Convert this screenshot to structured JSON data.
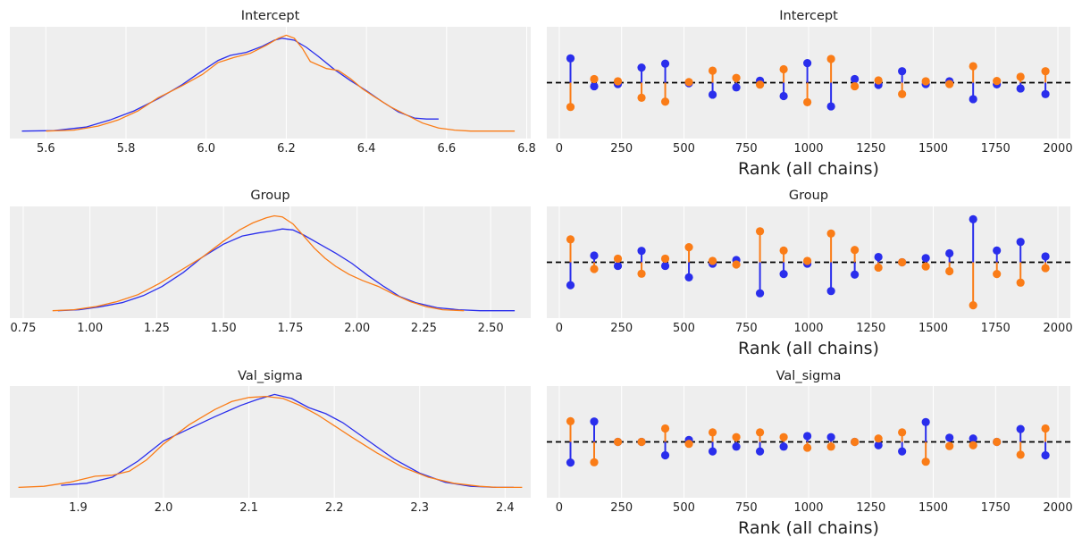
{
  "colors": {
    "chain_1": "#2a2eec",
    "chain_2": "#fa7c17",
    "panel_bg": "#eeeeee",
    "grid": "#ffffff",
    "ref_line": "#000000"
  },
  "chart_data": [
    {
      "type": "line",
      "kind": "density",
      "title": "Intercept",
      "xlim": [
        5.51,
        6.81
      ],
      "xticks": [
        "5.6",
        "5.8",
        "6.0",
        "6.2",
        "6.4",
        "6.6",
        "6.8"
      ],
      "series": [
        {
          "x": [
            5.54,
            5.62,
            5.7,
            5.76,
            5.82,
            5.88,
            5.94,
            5.98,
            6.03,
            6.06,
            6.1,
            6.14,
            6.17,
            6.19,
            6.22,
            6.25,
            6.28,
            6.32,
            6.36,
            6.4,
            6.44,
            6.48,
            6.52,
            6.55,
            6.58
          ],
          "y": [
            0.02,
            0.025,
            0.06,
            0.13,
            0.22,
            0.34,
            0.48,
            0.59,
            0.72,
            0.77,
            0.8,
            0.86,
            0.92,
            0.94,
            0.92,
            0.85,
            0.76,
            0.63,
            0.52,
            0.42,
            0.31,
            0.21,
            0.15,
            0.14,
            0.14
          ]
        },
        {
          "x": [
            5.6,
            5.67,
            5.73,
            5.78,
            5.83,
            5.88,
            5.94,
            5.99,
            6.03,
            6.07,
            6.11,
            6.15,
            6.18,
            6.2,
            6.22,
            6.24,
            6.26,
            6.3,
            6.33,
            6.36,
            6.39,
            6.42,
            6.46,
            6.5,
            6.54,
            6.58,
            6.62,
            6.66,
            6.72,
            6.77
          ],
          "y": [
            0.02,
            0.03,
            0.07,
            0.13,
            0.22,
            0.35,
            0.47,
            0.58,
            0.7,
            0.75,
            0.79,
            0.87,
            0.94,
            0.97,
            0.94,
            0.84,
            0.71,
            0.64,
            0.62,
            0.54,
            0.44,
            0.36,
            0.26,
            0.18,
            0.1,
            0.05,
            0.03,
            0.02,
            0.02,
            0.02
          ]
        }
      ]
    },
    {
      "type": "scatter",
      "kind": "rank",
      "title": "Intercept",
      "xlabel": "Rank (all chains)",
      "xlim": [
        -50,
        2050
      ],
      "xticks": [
        "0",
        "250",
        "500",
        "750",
        "1000",
        "1250",
        "1500",
        "1750",
        "2000"
      ],
      "bins": [
        45,
        140,
        235,
        330,
        425,
        520,
        615,
        710,
        805,
        900,
        995,
        1090,
        1185,
        1280,
        1375,
        1470,
        1565,
        1660,
        1755,
        1850,
        1950
      ],
      "series": [
        {
          "values": [
            0.87,
            -0.13,
            -0.05,
            0.54,
            0.68,
            -0.02,
            -0.43,
            -0.17,
            0.07,
            -0.48,
            0.7,
            -0.85,
            0.13,
            -0.08,
            0.41,
            -0.05,
            0.05,
            -0.59,
            -0.06,
            -0.21,
            -0.41
          ]
        },
        {
          "values": [
            -0.87,
            0.13,
            0.05,
            -0.54,
            -0.68,
            0.02,
            0.43,
            0.17,
            -0.07,
            0.48,
            -0.7,
            0.85,
            -0.13,
            0.08,
            -0.41,
            0.05,
            -0.05,
            0.59,
            0.06,
            0.21,
            0.41
          ]
        }
      ]
    },
    {
      "type": "line",
      "kind": "density",
      "title": "Group",
      "xlim": [
        0.7,
        2.65
      ],
      "xticks": [
        "0.75",
        "1.00",
        "1.25",
        "1.50",
        "1.75",
        "2.00",
        "2.25",
        "2.50"
      ],
      "series": [
        {
          "x": [
            0.88,
            0.96,
            1.04,
            1.12,
            1.2,
            1.27,
            1.35,
            1.42,
            1.5,
            1.57,
            1.63,
            1.68,
            1.72,
            1.76,
            1.8,
            1.86,
            1.92,
            1.98,
            2.04,
            2.1,
            2.16,
            2.22,
            2.3,
            2.38,
            2.46,
            2.59
          ],
          "y": [
            0.02,
            0.03,
            0.06,
            0.1,
            0.17,
            0.26,
            0.4,
            0.55,
            0.68,
            0.76,
            0.79,
            0.81,
            0.83,
            0.82,
            0.77,
            0.68,
            0.59,
            0.49,
            0.37,
            0.26,
            0.16,
            0.1,
            0.05,
            0.03,
            0.02,
            0.02
          ]
        },
        {
          "x": [
            0.86,
            0.94,
            1.02,
            1.1,
            1.18,
            1.26,
            1.34,
            1.42,
            1.5,
            1.56,
            1.61,
            1.66,
            1.69,
            1.72,
            1.76,
            1.8,
            1.84,
            1.88,
            1.92,
            1.97,
            2.02,
            2.08,
            2.14,
            2.2,
            2.26,
            2.32,
            2.4
          ],
          "y": [
            0.02,
            0.03,
            0.06,
            0.11,
            0.18,
            0.29,
            0.42,
            0.55,
            0.71,
            0.82,
            0.89,
            0.94,
            0.96,
            0.95,
            0.88,
            0.76,
            0.64,
            0.54,
            0.46,
            0.38,
            0.32,
            0.26,
            0.18,
            0.11,
            0.06,
            0.03,
            0.02
          ]
        }
      ]
    },
    {
      "type": "scatter",
      "kind": "rank",
      "title": "Group",
      "xlabel": "Rank (all chains)",
      "xlim": [
        -50,
        2050
      ],
      "xticks": [
        "0",
        "250",
        "500",
        "750",
        "1000",
        "1250",
        "1500",
        "1750",
        "2000"
      ],
      "bins": [
        45,
        140,
        235,
        330,
        425,
        520,
        615,
        710,
        805,
        900,
        995,
        1090,
        1185,
        1280,
        1375,
        1470,
        1565,
        1660,
        1755,
        1850,
        1950
      ],
      "series": [
        {
          "values": [
            -0.82,
            0.24,
            -0.13,
            0.41,
            -0.13,
            -0.54,
            -0.05,
            0.08,
            -1.11,
            -0.42,
            -0.05,
            -1.03,
            -0.44,
            0.19,
            0.0,
            0.15,
            0.32,
            1.54,
            0.42,
            0.73,
            0.21
          ]
        },
        {
          "values": [
            0.82,
            -0.24,
            0.13,
            -0.41,
            0.13,
            0.54,
            0.05,
            -0.08,
            1.11,
            0.42,
            0.05,
            1.03,
            0.44,
            -0.19,
            0.0,
            -0.15,
            -0.32,
            -1.54,
            -0.42,
            -0.73,
            -0.21
          ]
        }
      ]
    },
    {
      "type": "line",
      "kind": "density",
      "title": "Val_sigma",
      "xlim": [
        1.82,
        2.43
      ],
      "xticks": [
        "1.9",
        "2.0",
        "2.1",
        "2.2",
        "2.3",
        "2.4"
      ],
      "series": [
        {
          "x": [
            1.88,
            1.91,
            1.94,
            1.97,
            2.0,
            2.03,
            2.06,
            2.09,
            2.11,
            2.13,
            2.15,
            2.17,
            2.19,
            2.21,
            2.24,
            2.27,
            2.3,
            2.33,
            2.36,
            2.39,
            2.41
          ],
          "y": [
            0.07,
            0.09,
            0.15,
            0.31,
            0.51,
            0.63,
            0.75,
            0.86,
            0.92,
            0.97,
            0.93,
            0.84,
            0.78,
            0.69,
            0.51,
            0.33,
            0.19,
            0.1,
            0.06,
            0.05,
            0.05
          ]
        },
        {
          "x": [
            1.83,
            1.86,
            1.89,
            1.92,
            1.94,
            1.96,
            1.98,
            2.0,
            2.03,
            2.06,
            2.08,
            2.1,
            2.12,
            2.14,
            2.16,
            2.18,
            2.2,
            2.22,
            2.25,
            2.28,
            2.31,
            2.34,
            2.37,
            2.39,
            2.42
          ],
          "y": [
            0.05,
            0.06,
            0.1,
            0.16,
            0.17,
            0.21,
            0.32,
            0.48,
            0.67,
            0.82,
            0.9,
            0.94,
            0.95,
            0.93,
            0.86,
            0.77,
            0.66,
            0.55,
            0.39,
            0.25,
            0.15,
            0.09,
            0.06,
            0.05,
            0.05
          ]
        }
      ]
    },
    {
      "type": "scatter",
      "kind": "rank",
      "title": "Val_sigma",
      "xlabel": "Rank (all chains)",
      "xlim": [
        -50,
        2050
      ],
      "xticks": [
        "0",
        "250",
        "500",
        "750",
        "1000",
        "1250",
        "1500",
        "1750",
        "2000"
      ],
      "bins": [
        45,
        140,
        235,
        330,
        425,
        520,
        615,
        710,
        805,
        900,
        995,
        1090,
        1185,
        1280,
        1375,
        1470,
        1565,
        1660,
        1755,
        1850,
        1950
      ],
      "series": [
        {
          "values": [
            -0.74,
            0.73,
            0.0,
            0.0,
            -0.48,
            0.07,
            -0.34,
            -0.17,
            -0.34,
            -0.17,
            0.21,
            0.17,
            0.0,
            -0.12,
            -0.34,
            0.71,
            0.15,
            0.12,
            0.0,
            0.46,
            -0.48
          ]
        },
        {
          "values": [
            0.74,
            -0.73,
            0.0,
            0.0,
            0.48,
            -0.07,
            0.34,
            0.17,
            0.34,
            0.17,
            -0.21,
            -0.17,
            0.0,
            0.12,
            0.34,
            -0.71,
            -0.15,
            -0.12,
            0.0,
            -0.46,
            0.48
          ]
        }
      ]
    }
  ]
}
